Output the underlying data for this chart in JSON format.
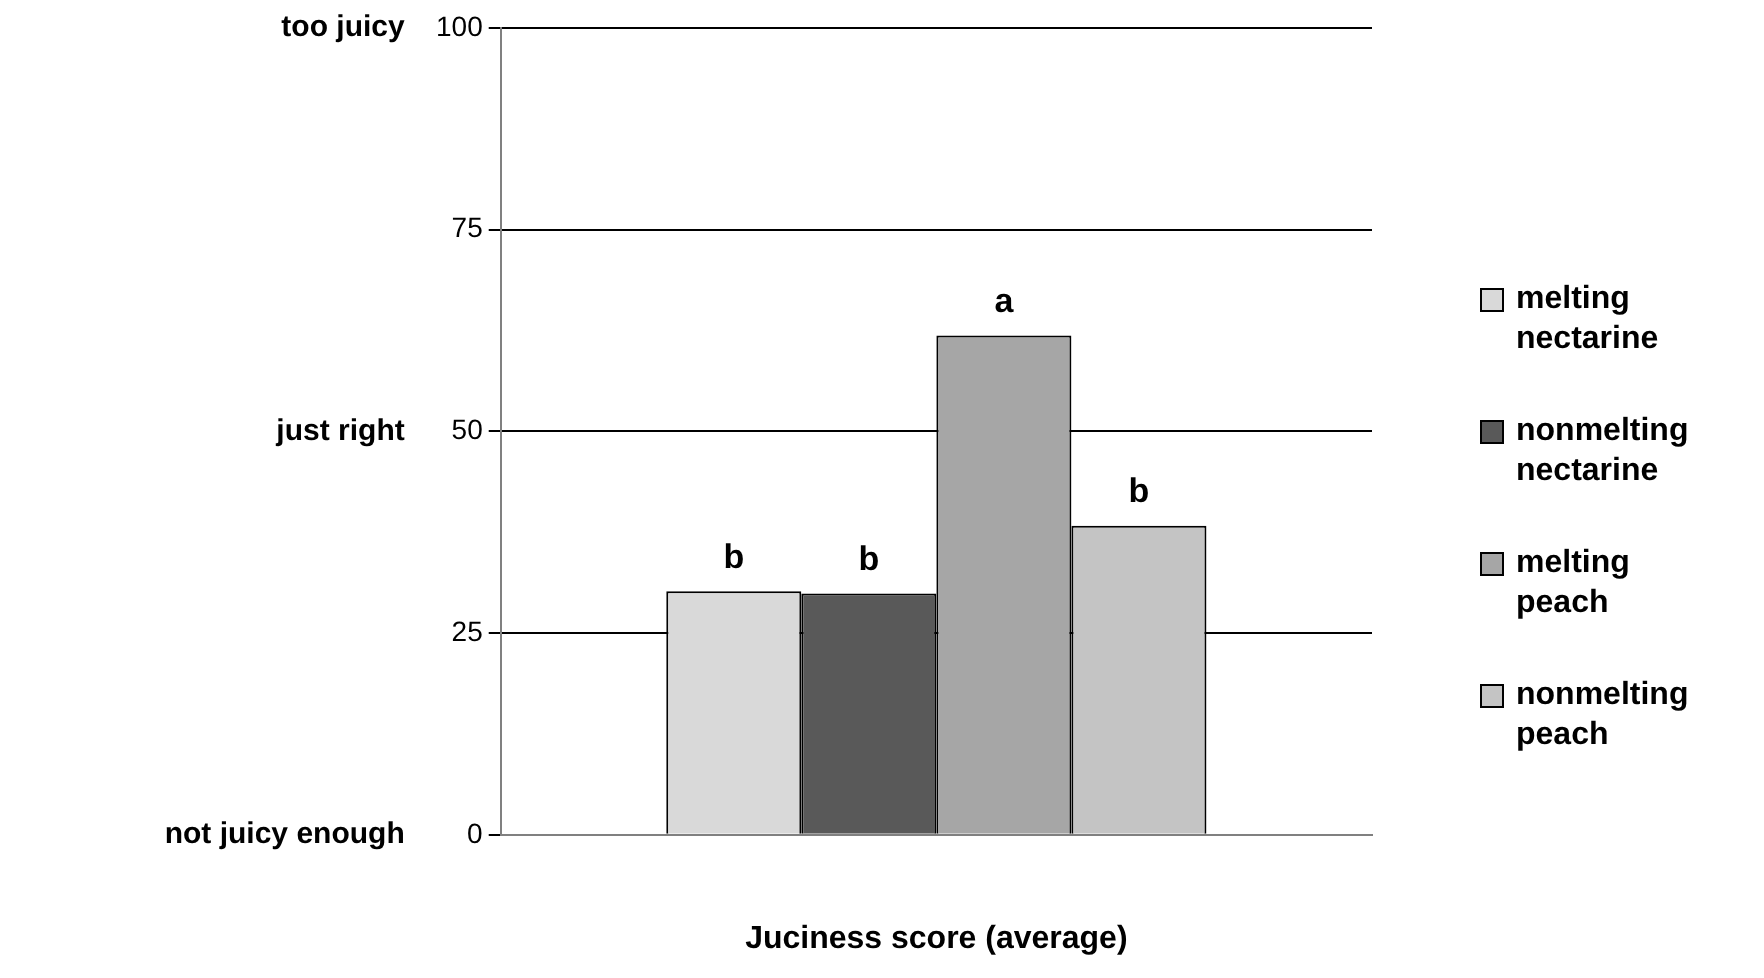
{
  "chart_data": {
    "type": "bar",
    "xlabel": "Juciness score (average)",
    "categories": [
      null
    ],
    "series": [
      {
        "name": "melting nectarine",
        "color": "#d9d9d9",
        "values": [
          30.2
        ],
        "value_labels": [
          "b"
        ]
      },
      {
        "name": "nonmelting nectarine",
        "color": "#595959",
        "values": [
          29.9
        ],
        "value_labels": [
          "b"
        ]
      },
      {
        "name": "melting peach",
        "color": "#a6a6a6",
        "values": [
          61.9
        ],
        "value_labels": [
          "a"
        ]
      },
      {
        "name": "nonmelting peach",
        "color": "#c4c4c4",
        "values": [
          38.3
        ],
        "value_labels": [
          "b"
        ]
      }
    ],
    "ylim": [
      0,
      100
    ],
    "yticks": [
      0,
      25,
      50,
      75,
      100
    ],
    "grid": "y",
    "legend": "right",
    "annotations": [
      "too juicy",
      "just right",
      "not juicy enough"
    ]
  }
}
